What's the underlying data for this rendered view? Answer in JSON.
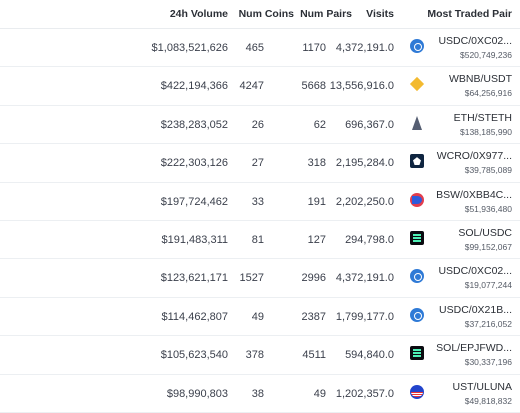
{
  "header": {
    "volume": "24h Volume",
    "coins": "Num Coins",
    "pairs": "Num Pairs",
    "visits": "Visits",
    "pair": "Most Traded Pair"
  },
  "rows": [
    {
      "volume": "$1,083,521,626",
      "coins": "465",
      "pairs": "1170",
      "visits": "4,372,191.0",
      "pair": "USDC/0XC02...",
      "pair_volume": "$520,749,236",
      "icon": "usdc-icon"
    },
    {
      "volume": "$422,194,366",
      "coins": "4247",
      "pairs": "5668",
      "visits": "13,556,916.0",
      "pair": "WBNB/USDT",
      "pair_volume": "$64,256,916",
      "icon": "bnb-icon"
    },
    {
      "volume": "$238,283,052",
      "coins": "26",
      "pairs": "62",
      "visits": "696,367.0",
      "pair": "ETH/STETH",
      "pair_volume": "$138,185,990",
      "icon": "eth-icon"
    },
    {
      "volume": "$222,303,126",
      "coins": "27",
      "pairs": "318",
      "visits": "2,195,284.0",
      "pair": "WCRO/0X977...",
      "pair_volume": "$39,785,089",
      "icon": "wcro-icon"
    },
    {
      "volume": "$197,724,462",
      "coins": "33",
      "pairs": "191",
      "visits": "2,202,250.0",
      "pair": "BSW/0XBB4C...",
      "pair_volume": "$51,936,480",
      "icon": "bsw-icon"
    },
    {
      "volume": "$191,483,311",
      "coins": "81",
      "pairs": "127",
      "visits": "294,798.0",
      "pair": "SOL/USDC",
      "pair_volume": "$99,152,067",
      "icon": "sol-icon"
    },
    {
      "volume": "$123,621,171",
      "coins": "1527",
      "pairs": "2996",
      "visits": "4,372,191.0",
      "pair": "USDC/0XC02...",
      "pair_volume": "$19,077,244",
      "icon": "usdc-icon"
    },
    {
      "volume": "$114,462,807",
      "coins": "49",
      "pairs": "2387",
      "visits": "1,799,177.0",
      "pair": "USDC/0X21B...",
      "pair_volume": "$37,216,052",
      "icon": "usdc-icon"
    },
    {
      "volume": "$105,623,540",
      "coins": "378",
      "pairs": "4511",
      "visits": "594,840.0",
      "pair": "SOL/EPJFWD...",
      "pair_volume": "$30,337,196",
      "icon": "sol-icon"
    },
    {
      "volume": "$98,990,803",
      "coins": "38",
      "pairs": "49",
      "visits": "1,202,357.0",
      "pair": "UST/ULUNA",
      "pair_volume": "$49,818,832",
      "icon": "ust-icon"
    }
  ]
}
